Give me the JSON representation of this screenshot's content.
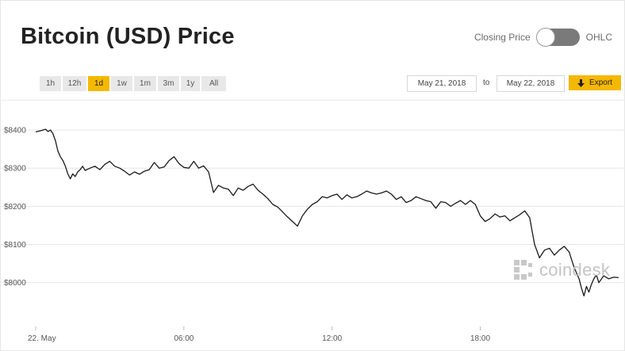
{
  "header": {
    "title": "Bitcoin (USD) Price",
    "toggle_left_label": "Closing Price",
    "toggle_right_label": "OHLC"
  },
  "ranges": [
    "1h",
    "12h",
    "1d",
    "1w",
    "1m",
    "3m",
    "1y",
    "All"
  ],
  "active_range": "1d",
  "date_from": "May 21, 2018",
  "date_to": "May 22, 2018",
  "to_label": "to",
  "export_label": "Export",
  "watermark": "coindesk",
  "colors": {
    "accent": "#f5b800",
    "line": "#1a1a1a",
    "grid": "#e6e6e6",
    "toggle": "#7a7a7a"
  },
  "chart_data": {
    "type": "line",
    "title": "Bitcoin (USD) Price",
    "xlabel": "",
    "ylabel": "",
    "y_ticks": [
      8000,
      8100,
      8200,
      8300,
      8400
    ],
    "y_tick_labels": [
      "$8000",
      "$8100",
      "$8200",
      "$8300",
      "$8400"
    ],
    "x_ticks": [
      0,
      6,
      12,
      18
    ],
    "x_tick_labels": [
      "22. May",
      "06:00",
      "12:00",
      "18:00"
    ],
    "xlim": [
      0,
      23.7
    ],
    "ylim": [
      7910,
      8450
    ],
    "grid": true,
    "legend": "none",
    "series": [
      {
        "x": [
          0,
          0.2,
          0.4,
          0.5,
          0.6,
          0.7,
          0.8,
          0.9,
          1.0,
          1.1,
          1.2,
          1.3,
          1.4,
          1.5,
          1.6,
          1.7,
          1.8,
          1.9,
          2.0,
          2.2,
          2.4,
          2.6,
          2.8,
          3.0,
          3.2,
          3.4,
          3.6,
          3.8,
          4.0,
          4.2,
          4.4,
          4.6,
          4.8,
          5.0,
          5.2,
          5.4,
          5.6,
          5.8,
          6.0,
          6.2,
          6.4,
          6.6,
          6.8,
          7.0,
          7.2,
          7.4,
          7.6,
          7.8,
          8.0,
          8.2,
          8.4,
          8.6,
          8.8,
          9.0,
          9.2,
          9.4,
          9.6,
          9.8,
          10.0,
          10.2,
          10.4,
          10.6,
          10.8,
          11.0,
          11.2,
          11.4,
          11.6,
          11.8,
          12.0,
          12.2,
          12.4,
          12.6,
          12.8,
          13.0,
          13.2,
          13.4,
          13.6,
          13.8,
          14.0,
          14.2,
          14.4,
          14.6,
          14.8,
          15.0,
          15.2,
          15.4,
          15.6,
          15.8,
          16.0,
          16.2,
          16.4,
          16.6,
          16.8,
          17.0,
          17.2,
          17.4,
          17.6,
          17.8,
          18.0,
          18.2,
          18.4,
          18.6,
          18.8,
          19.0,
          19.2,
          19.4,
          19.6,
          19.8,
          20.0,
          20.2,
          20.4,
          20.6,
          20.8,
          21.0,
          21.2,
          21.4,
          21.6,
          21.8,
          22.0,
          22.1,
          22.2,
          22.3,
          22.4,
          22.5,
          22.6,
          22.7,
          22.8,
          23.0,
          23.2,
          23.4,
          23.6
        ],
        "values": [
          8395,
          8398,
          8402,
          8396,
          8400,
          8390,
          8372,
          8345,
          8330,
          8320,
          8305,
          8285,
          8272,
          8285,
          8278,
          8290,
          8296,
          8305,
          8294,
          8300,
          8305,
          8296,
          8310,
          8318,
          8305,
          8300,
          8292,
          8282,
          8290,
          8284,
          8292,
          8296,
          8315,
          8300,
          8303,
          8320,
          8330,
          8312,
          8302,
          8300,
          8318,
          8300,
          8306,
          8290,
          8236,
          8255,
          8248,
          8245,
          8228,
          8248,
          8242,
          8252,
          8258,
          8242,
          8232,
          8220,
          8205,
          8198,
          8185,
          8172,
          8160,
          8148,
          8175,
          8192,
          8205,
          8212,
          8225,
          8222,
          8228,
          8232,
          8218,
          8230,
          8222,
          8225,
          8232,
          8240,
          8235,
          8232,
          8235,
          8240,
          8232,
          8218,
          8225,
          8210,
          8215,
          8225,
          8220,
          8215,
          8212,
          8195,
          8212,
          8210,
          8200,
          8208,
          8215,
          8205,
          8215,
          8205,
          8175,
          8160,
          8168,
          8180,
          8172,
          8175,
          8162,
          8170,
          8178,
          8188,
          8170,
          8100,
          8065,
          8085,
          8090,
          8072,
          8085,
          8095,
          8080,
          8040,
          8010,
          7985,
          7965,
          7990,
          7975,
          7995,
          8010,
          8020,
          8000,
          8018,
          8010,
          8014,
          8013
        ]
      }
    ]
  }
}
